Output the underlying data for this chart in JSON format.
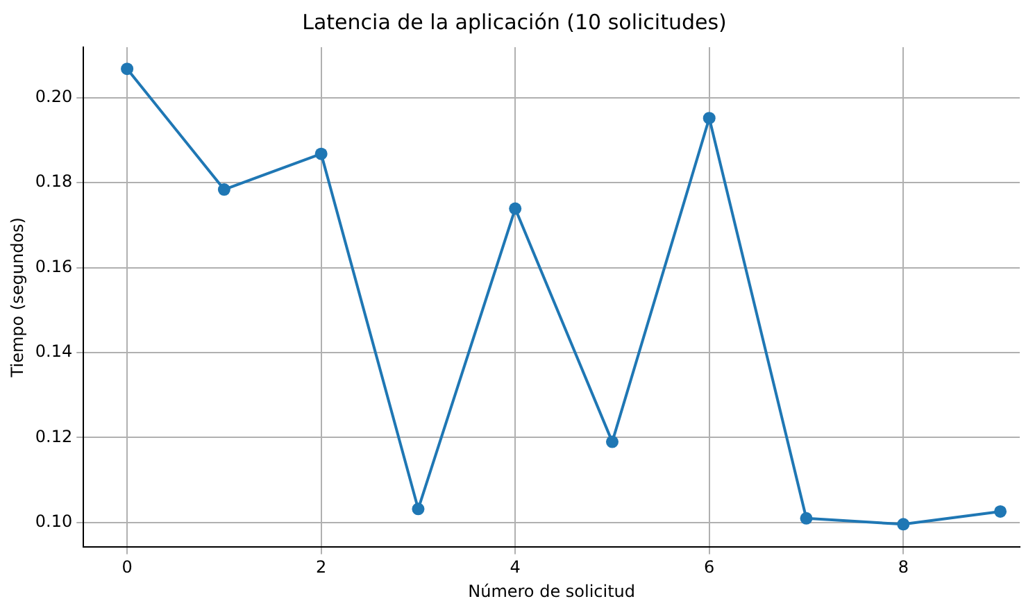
{
  "chart_data": {
    "type": "line",
    "title": "Latencia de la aplicación (10 solicitudes)",
    "xlabel": "Número de solicitud",
    "ylabel": "Tiempo (segundos)",
    "x": [
      0,
      1,
      2,
      3,
      4,
      5,
      6,
      7,
      8,
      9
    ],
    "series": [
      {
        "color": "#1f77b4",
        "values": [
          0.2068,
          0.1784,
          0.1868,
          0.1032,
          0.1739,
          0.119,
          0.1952,
          0.101,
          0.0996,
          0.1026
        ]
      }
    ],
    "xlim": [
      -0.45,
      9.2
    ],
    "xticks": [
      0,
      2,
      4,
      6,
      8
    ],
    "ylim": [
      0.0942,
      0.2119
    ],
    "yticks": [
      {
        "value": 0.1,
        "label": "0.10"
      },
      {
        "value": 0.12,
        "label": "0.12"
      },
      {
        "value": 0.14,
        "label": "0.14"
      },
      {
        "value": 0.16,
        "label": "0.16"
      },
      {
        "value": 0.18,
        "label": "0.18"
      },
      {
        "value": 0.2,
        "label": "0.20"
      }
    ],
    "grid": true,
    "marker": "circle",
    "line_style": "solid",
    "legend": false
  }
}
